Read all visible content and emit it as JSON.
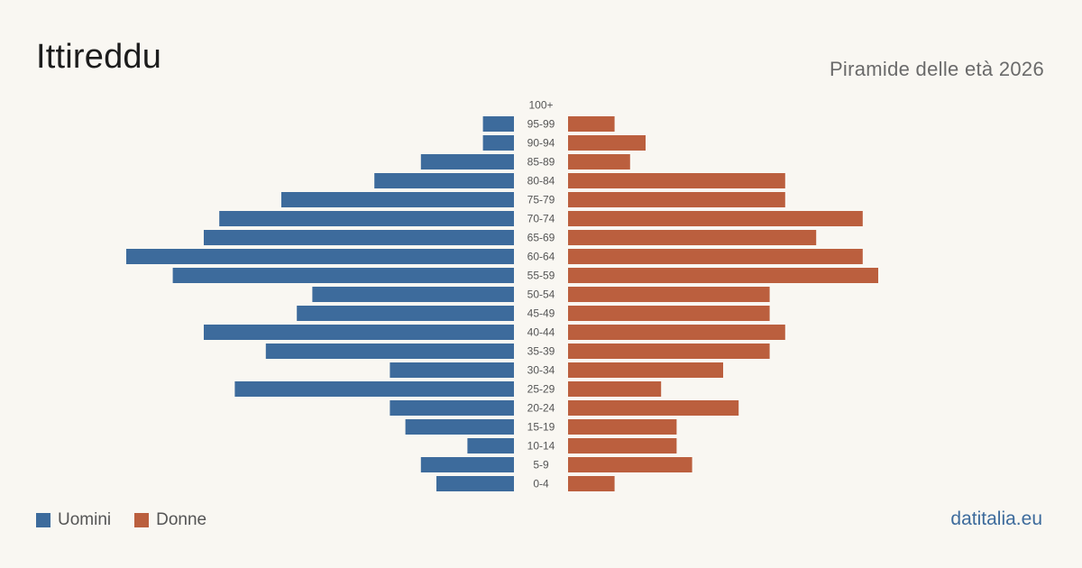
{
  "header": {
    "title": "Ittireddu",
    "subtitle": "Piramide delle età 2026"
  },
  "footer": {
    "brand": "datitalia.eu"
  },
  "colors": {
    "men": "#3d6b9c",
    "women": "#bb5f3e",
    "background": "#f9f7f2"
  },
  "chart_data": {
    "type": "bar",
    "orientation": "horizontal-pyramid",
    "title": "Piramide delle età 2026",
    "categories": [
      "100+",
      "95-99",
      "90-94",
      "85-89",
      "80-84",
      "75-79",
      "70-74",
      "65-69",
      "60-64",
      "55-59",
      "50-54",
      "45-49",
      "40-44",
      "35-39",
      "30-34",
      "25-29",
      "20-24",
      "15-19",
      "10-14",
      "5-9",
      "0-4"
    ],
    "series": [
      {
        "name": "Uomini",
        "side": "left",
        "values": [
          0,
          2,
          2,
          6,
          9,
          15,
          19,
          20,
          25,
          22,
          13,
          14,
          20,
          16,
          8,
          18,
          8,
          7,
          3,
          6,
          5
        ]
      },
      {
        "name": "Donne",
        "side": "right",
        "values": [
          0,
          3,
          5,
          4,
          14,
          14,
          19,
          16,
          19,
          20,
          13,
          13,
          14,
          13,
          10,
          6,
          11,
          7,
          7,
          8,
          3
        ]
      }
    ],
    "legend": {
      "position": "bottom-left",
      "entries": [
        "Uomini",
        "Donne"
      ]
    },
    "grid": false
  }
}
